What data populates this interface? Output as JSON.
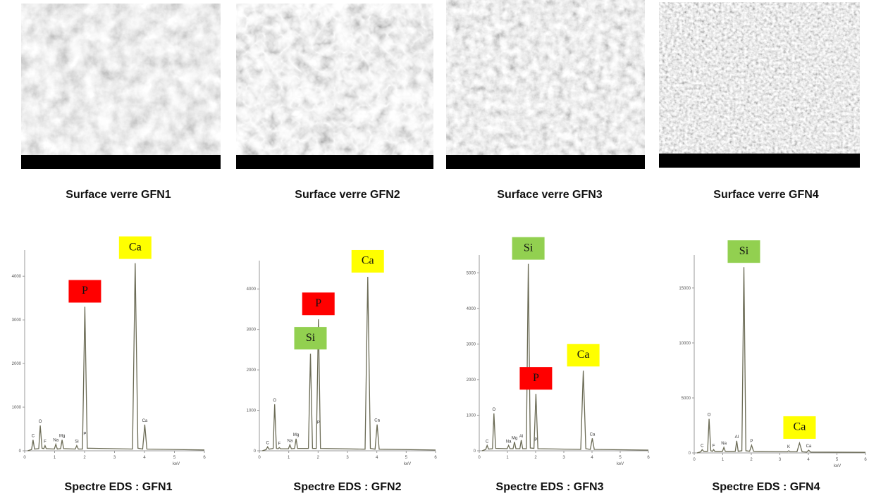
{
  "images": [
    {
      "caption": "Surface verre GFN1"
    },
    {
      "caption": "Surface verre GFN2"
    },
    {
      "caption": "Surface verre GFN3"
    },
    {
      "caption": "Surface verre GFN4"
    }
  ],
  "chart_data": [
    {
      "type": "line",
      "title": "Spectre EDS : GFN1",
      "xlabel": "keV",
      "color": "#6b6b55",
      "x": [
        0.1,
        0.23,
        0.28,
        0.33,
        0.47,
        0.52,
        0.58,
        0.64,
        0.68,
        0.72,
        0.99,
        1.04,
        1.09,
        1.2,
        1.25,
        1.3,
        1.69,
        1.74,
        1.79,
        1.93,
        2.01,
        2.09,
        3.6,
        3.69,
        3.78,
        3.94,
        4.01,
        4.08,
        6
      ],
      "values": [
        0,
        30,
        250,
        40,
        50,
        580,
        60,
        50,
        120,
        50,
        40,
        150,
        40,
        50,
        250,
        50,
        40,
        120,
        40,
        40,
        3300,
        60,
        40,
        4300,
        60,
        40,
        600,
        40,
        20
      ],
      "xlim": [
        0,
        6
      ],
      "xticks": [
        0,
        1,
        2,
        3,
        4,
        5,
        6
      ],
      "ylim": [
        0,
        4600
      ],
      "yticks": [
        0,
        1000,
        2000,
        3000,
        4000
      ],
      "annotations": [
        {
          "text": "C",
          "x": 0.28,
          "y": 250
        },
        {
          "text": "O",
          "x": 0.52,
          "y": 580
        },
        {
          "text": "F",
          "x": 0.68,
          "y": 120
        },
        {
          "text": "Na",
          "x": 1.04,
          "y": 150
        },
        {
          "text": "Mg",
          "x": 1.25,
          "y": 250
        },
        {
          "text": "Si",
          "x": 1.74,
          "y": 120
        },
        {
          "text": "P",
          "x": 2.01,
          "y": 300
        },
        {
          "text": "Ca",
          "x": 4.01,
          "y": 600
        }
      ],
      "peak_labels": [
        {
          "text": "P",
          "x": 2.01,
          "y": 3300,
          "color": "#ff0000"
        },
        {
          "text": "Ca",
          "x": 3.69,
          "y": 4300,
          "color": "#ffff00"
        }
      ]
    },
    {
      "type": "line",
      "title": "Spectre EDS : GFN2",
      "xlabel": "keV",
      "color": "#6b6b55",
      "x": [
        0.1,
        0.23,
        0.28,
        0.33,
        0.47,
        0.52,
        0.58,
        0.64,
        0.68,
        0.72,
        0.99,
        1.04,
        1.09,
        1.2,
        1.25,
        1.3,
        1.67,
        1.74,
        1.81,
        1.94,
        2.01,
        2.08,
        3.6,
        3.69,
        3.78,
        3.94,
        4.01,
        4.08,
        6
      ],
      "values": [
        0,
        30,
        100,
        40,
        60,
        1150,
        60,
        50,
        80,
        50,
        50,
        150,
        50,
        60,
        300,
        60,
        60,
        2400,
        60,
        60,
        3250,
        60,
        40,
        4300,
        60,
        40,
        650,
        40,
        20
      ],
      "xlim": [
        0,
        6
      ],
      "xticks": [
        0,
        1,
        2,
        3,
        4,
        5,
        6
      ],
      "ylim": [
        0,
        4700
      ],
      "yticks": [
        0,
        1000,
        2000,
        3000,
        4000
      ],
      "annotations": [
        {
          "text": "C",
          "x": 0.28,
          "y": 100
        },
        {
          "text": "O",
          "x": 0.52,
          "y": 1150
        },
        {
          "text": "F",
          "x": 0.68,
          "y": 80
        },
        {
          "text": "Na",
          "x": 1.04,
          "y": 150
        },
        {
          "text": "Mg",
          "x": 1.25,
          "y": 300
        },
        {
          "text": "P",
          "x": 2.01,
          "y": 600
        },
        {
          "text": "Ca",
          "x": 4.01,
          "y": 650
        }
      ],
      "peak_labels": [
        {
          "text": "Si",
          "x": 1.74,
          "y": 2400,
          "color": "#92d050"
        },
        {
          "text": "P",
          "x": 2.01,
          "y": 3250,
          "color": "#ff0000"
        },
        {
          "text": "Ca",
          "x": 3.69,
          "y": 4300,
          "color": "#ffff00"
        }
      ]
    },
    {
      "type": "line",
      "title": "Spectre EDS : GFN3",
      "xlabel": "keV",
      "color": "#6b6b55",
      "x": [
        0.1,
        0.23,
        0.28,
        0.33,
        0.47,
        0.52,
        0.58,
        0.99,
        1.04,
        1.09,
        1.2,
        1.25,
        1.3,
        1.44,
        1.49,
        1.54,
        1.67,
        1.74,
        1.81,
        1.94,
        2.01,
        2.08,
        3.6,
        3.69,
        3.78,
        3.94,
        4.01,
        4.08,
        6
      ],
      "values": [
        0,
        40,
        150,
        50,
        60,
        1050,
        70,
        60,
        150,
        60,
        60,
        250,
        60,
        60,
        300,
        60,
        60,
        5250,
        80,
        70,
        1600,
        60,
        40,
        2250,
        60,
        40,
        350,
        40,
        20
      ],
      "xlim": [
        0,
        6
      ],
      "xticks": [
        0,
        1,
        2,
        3,
        4,
        5,
        6
      ],
      "ylim": [
        0,
        5500
      ],
      "yticks": [
        0,
        1000,
        2000,
        3000,
        4000,
        5000
      ],
      "annotations": [
        {
          "text": "C",
          "x": 0.28,
          "y": 150
        },
        {
          "text": "O",
          "x": 0.52,
          "y": 1050
        },
        {
          "text": "Na",
          "x": 1.04,
          "y": 150
        },
        {
          "text": "Mg",
          "x": 1.25,
          "y": 250
        },
        {
          "text": "Al",
          "x": 1.49,
          "y": 300
        },
        {
          "text": "P",
          "x": 2.01,
          "y": 200
        },
        {
          "text": "Ca",
          "x": 4.01,
          "y": 350
        }
      ],
      "peak_labels": [
        {
          "text": "Si",
          "x": 1.74,
          "y": 5250,
          "color": "#92d050"
        },
        {
          "text": "P",
          "x": 2.01,
          "y": 1600,
          "color": "#ff0000"
        },
        {
          "text": "Ca",
          "x": 3.69,
          "y": 2250,
          "color": "#ffff00"
        }
      ]
    },
    {
      "type": "line",
      "title": "Spectre EDS : GFN4",
      "xlabel": "keV",
      "color": "#6b6b55",
      "x": [
        0.1,
        0.23,
        0.28,
        0.33,
        0.47,
        0.52,
        0.58,
        0.64,
        0.68,
        0.72,
        0.99,
        1.04,
        1.09,
        1.44,
        1.49,
        1.54,
        1.67,
        1.74,
        1.81,
        1.94,
        2.01,
        2.08,
        3.26,
        3.31,
        3.36,
        3.6,
        3.69,
        3.78,
        3.94,
        4.01,
        4.08,
        6
      ],
      "values": [
        0,
        100,
        300,
        150,
        150,
        3100,
        200,
        150,
        300,
        150,
        150,
        500,
        150,
        150,
        1100,
        150,
        200,
        16900,
        200,
        150,
        700,
        150,
        100,
        200,
        100,
        100,
        900,
        100,
        80,
        250,
        80,
        50
      ],
      "xlim": [
        0,
        6
      ],
      "xticks": [
        0,
        1,
        2,
        3,
        4,
        5,
        6
      ],
      "ylim": [
        0,
        18000
      ],
      "yticks": [
        0,
        5000,
        10000,
        15000
      ],
      "annotations": [
        {
          "text": "C",
          "x": 0.28,
          "y": 300
        },
        {
          "text": "O",
          "x": 0.52,
          "y": 3100
        },
        {
          "text": "F",
          "x": 0.68,
          "y": 300
        },
        {
          "text": "Na",
          "x": 1.04,
          "y": 500
        },
        {
          "text": "Al",
          "x": 1.49,
          "y": 1100
        },
        {
          "text": "P",
          "x": 2.01,
          "y": 700
        },
        {
          "text": "K",
          "x": 3.31,
          "y": 200
        },
        {
          "text": "Ca",
          "x": 4.01,
          "y": 250
        }
      ],
      "peak_labels": [
        {
          "text": "Si",
          "x": 1.74,
          "y": 16900,
          "color": "#92d050"
        },
        {
          "text": "Ca",
          "x": 3.69,
          "y": 900,
          "color": "#ffff00"
        }
      ]
    }
  ]
}
